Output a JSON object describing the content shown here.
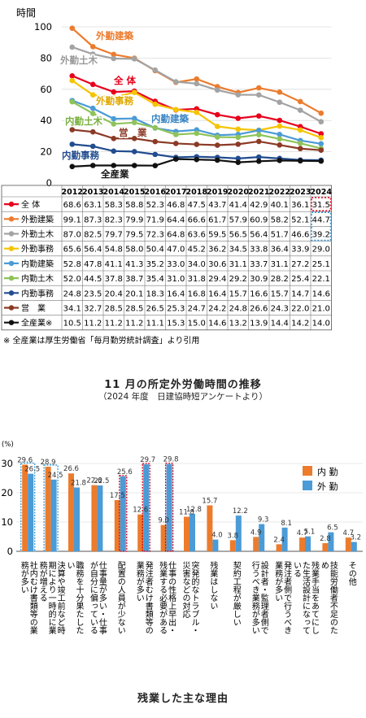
{
  "chart_data": [
    {
      "type": "line",
      "ylabel": "時間",
      "ylim": [
        0,
        100
      ],
      "yticks": [
        0,
        20,
        40,
        60,
        80,
        100
      ],
      "x": [
        "2012",
        "2013",
        "2014",
        "2015",
        "2016",
        "2017",
        "2018",
        "2019",
        "2020",
        "2021",
        "2022",
        "2023",
        "2024"
      ],
      "series": [
        {
          "name": "全 体",
          "color": "#e8001c",
          "values": [
            68.6,
            63.1,
            58.3,
            58.8,
            52.3,
            46.8,
            47.5,
            43.7,
            41.4,
            42.9,
            40.1,
            36.1,
            31.5
          ]
        },
        {
          "name": "外勤建築",
          "color": "#ec7b2c",
          "values": [
            99.1,
            87.3,
            82.3,
            79.9,
            71.9,
            64.4,
            66.6,
            61.7,
            57.9,
            60.9,
            58.2,
            52.1,
            44.7
          ]
        },
        {
          "name": "外勤土木",
          "color": "#a3a3a3",
          "values": [
            87.0,
            82.5,
            79.7,
            79.5,
            72.3,
            64.8,
            63.6,
            59.5,
            56.5,
            56.4,
            51.7,
            46.6,
            39.2
          ]
        },
        {
          "name": "外勤事務",
          "color": "#f5c400",
          "values": [
            65.6,
            56.4,
            54.8,
            58.0,
            50.4,
            47.0,
            45.2,
            36.2,
            34.5,
            33.8,
            36.4,
            33.9,
            29.0
          ]
        },
        {
          "name": "内勤建築",
          "color": "#4b9bd6",
          "values": [
            52.8,
            47.8,
            41.1,
            41.3,
            35.2,
            33.0,
            34.0,
            30.6,
            31.1,
            33.7,
            31.1,
            27.2,
            25.1
          ]
        },
        {
          "name": "内勤土木",
          "color": "#8fc35a",
          "values": [
            52.0,
            44.5,
            37.8,
            38.7,
            35.4,
            31.0,
            31.8,
            29.4,
            29.2,
            30.9,
            28.2,
            25.4,
            22.1
          ]
        },
        {
          "name": "内勤事務",
          "color": "#224d8f",
          "values": [
            24.8,
            23.5,
            20.4,
            20.1,
            18.3,
            16.4,
            16.8,
            16.4,
            15.7,
            16.6,
            15.7,
            14.7,
            14.6
          ]
        },
        {
          "name": "営　業",
          "color": "#8b3a25",
          "values": [
            34.1,
            32.7,
            28.5,
            28.5,
            26.5,
            25.3,
            24.7,
            24.2,
            24.8,
            26.6,
            24.3,
            22.0,
            21.0
          ]
        },
        {
          "name": "全産業※",
          "color": "#111111",
          "values": [
            10.5,
            11.2,
            11.2,
            11.2,
            11.1,
            15.3,
            15.0,
            14.6,
            13.2,
            13.9,
            14.4,
            14.2,
            14.0
          ]
        }
      ],
      "chart_labels": {
        "all": "全 体",
        "gaikin_kenchiku": "外勤建築",
        "gaikin_doboku": "外勤土木",
        "gaikin_jimu": "外勤事務",
        "naikin_kenchiku": "内勤建築",
        "naikin_doboku": "内勤土木",
        "naikin_jimu": "内勤事務",
        "eigyo": "営　業",
        "zensangyo": "全産業"
      }
    },
    {
      "type": "bar",
      "ylabel": "(%)",
      "ylim": [
        0,
        30
      ],
      "yticks": [
        0,
        10,
        20,
        30
      ],
      "categories": [
        "社内むけ書類等の業務が多い",
        "決算や竣工前など時期により一時的に業務が増える",
        "職務を十分果たしたい",
        "仕事量が多い・仕事が自分に偏っている",
        "配置の人員が少ない",
        "発注者むけ書類等の業務が多い",
        "仕事の性格上早出・残業する必要がある",
        "突発的なトラブル・災害などの対応",
        "残業はしない",
        "契約工程が厳しい",
        "設計者・監理者側で行うべき業務が多い",
        "発注者側で行うべき業務が多い",
        "残業手当をあてにした生活設計になっている",
        "技能労働者不足のため",
        "その他"
      ],
      "series": [
        {
          "name": "内 勤",
          "color": "#ec7b2c",
          "values": [
            29.6,
            28.9,
            26.6,
            22.6,
            17.5,
            12.6,
            9.0,
            11.8,
            15.7,
            3.8,
            4.9,
            2.4,
            4.7,
            2.8,
            4.7
          ]
        },
        {
          "name": "外 勤",
          "color": "#4b9bd6",
          "values": [
            26.5,
            24.5,
            21.8,
            22.5,
            25.6,
            29.7,
            29.8,
            12.8,
            4.0,
            12.2,
            9.3,
            8.1,
            5.1,
            6.5,
            3.2
          ]
        }
      ],
      "legend": "top-right"
    }
  ],
  "note": "※ 全産業は厚生労働省「毎月勤労統計調査」より引用",
  "title1": "11 月の所定外労働時間の推移",
  "subtitle1": "（2024 年度　日建協時短アンケートより）",
  "title2": "残業した主な理由"
}
